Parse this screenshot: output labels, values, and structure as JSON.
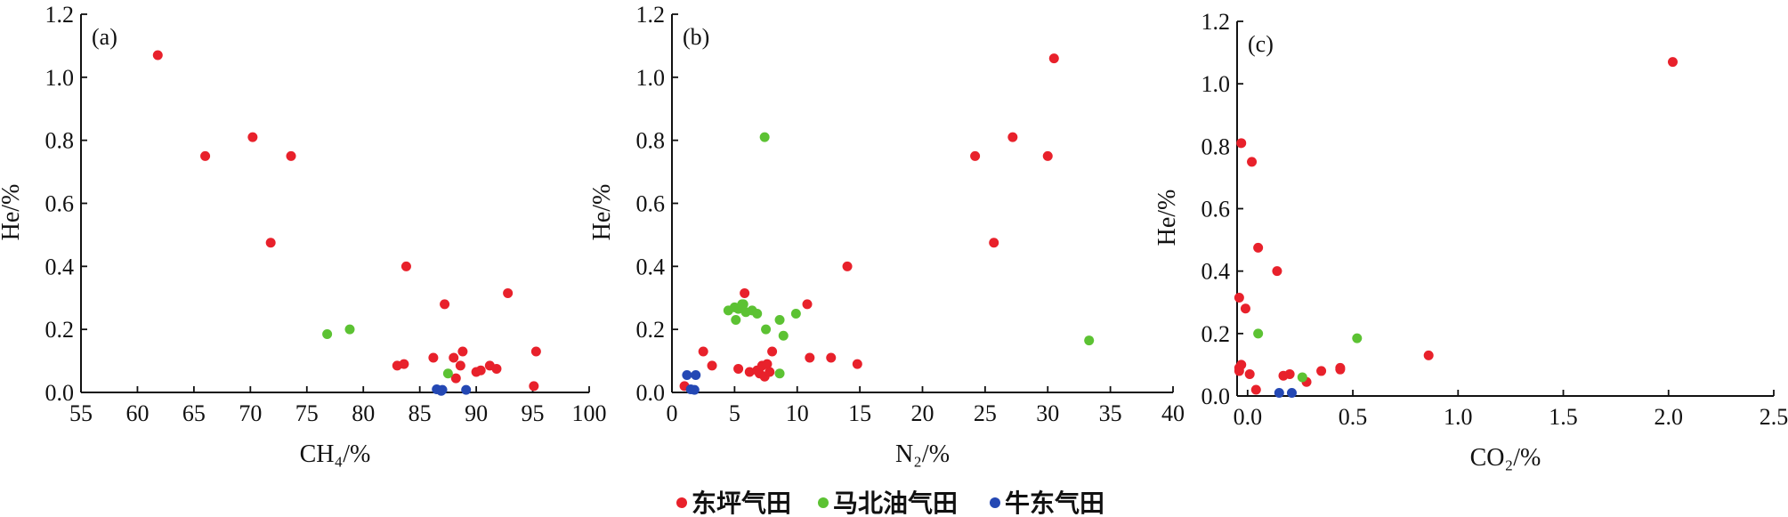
{
  "colors": {
    "dongping": "#e8212b",
    "mabei": "#5cc233",
    "niudong": "#2448b4"
  },
  "legend": [
    {
      "key": "dongping",
      "label": "东坪气田"
    },
    {
      "key": "mabei",
      "label": "马北油气田"
    },
    {
      "key": "niudong",
      "label": "牛东气田"
    }
  ],
  "chart_data": [
    {
      "type": "scatter",
      "panel_label": "(a)",
      "xlabel": "CH₄/%",
      "ylabel": "He/%",
      "xlim": [
        55,
        100
      ],
      "ylim": [
        0,
        1.2
      ],
      "xticks": [
        "55",
        "60",
        "65",
        "70",
        "75",
        "80",
        "85",
        "90",
        "95",
        "100"
      ],
      "yticks": [
        "0.0",
        "0.2",
        "0.4",
        "0.6",
        "0.8",
        "1.0",
        "1.2"
      ],
      "series": [
        {
          "key": "dongping",
          "name": "东坪气田",
          "x": [
            61.8,
            66.0,
            70.2,
            71.8,
            73.6,
            83.8,
            87.2,
            92.8,
            83.0,
            83.6,
            86.2,
            88.0,
            88.8,
            90.0,
            90.4,
            91.2,
            91.8,
            95.3,
            95.1,
            88.2,
            88.6
          ],
          "y": [
            1.07,
            0.75,
            0.81,
            0.475,
            0.75,
            0.4,
            0.28,
            0.315,
            0.085,
            0.09,
            0.11,
            0.11,
            0.13,
            0.065,
            0.07,
            0.085,
            0.075,
            0.13,
            0.02,
            0.045,
            0.085
          ]
        },
        {
          "key": "mabei",
          "name": "马北油气田",
          "x": [
            76.8,
            78.8,
            87.5
          ],
          "y": [
            0.185,
            0.2,
            0.06
          ]
        },
        {
          "key": "niudong",
          "name": "牛东气田",
          "x": [
            86.5,
            86.9,
            87.0,
            89.1
          ],
          "y": [
            0.01,
            0.005,
            0.008,
            0.008
          ]
        }
      ]
    },
    {
      "type": "scatter",
      "panel_label": "(b)",
      "xlabel": "N₂/%",
      "ylabel": "He/%",
      "xlim": [
        0,
        40
      ],
      "ylim": [
        0,
        1.2
      ],
      "xticks": [
        "0",
        "5",
        "10",
        "15",
        "20",
        "25",
        "30",
        "35",
        "40"
      ],
      "yticks": [
        "0.0",
        "0.2",
        "0.4",
        "0.6",
        "0.8",
        "1.0",
        "1.2"
      ],
      "series": [
        {
          "key": "dongping",
          "name": "东坪气田",
          "x": [
            30.5,
            24.2,
            27.2,
            30.0,
            25.7,
            14.0,
            10.8,
            5.8,
            2.5,
            1.0,
            3.2,
            5.3,
            6.2,
            7.0,
            7.4,
            7.8,
            6.8,
            7.2,
            11.0,
            12.7,
            14.8,
            7.6,
            8.0
          ],
          "y": [
            1.06,
            0.75,
            0.81,
            0.75,
            0.475,
            0.4,
            0.28,
            0.315,
            0.13,
            0.02,
            0.085,
            0.075,
            0.065,
            0.06,
            0.05,
            0.065,
            0.07,
            0.085,
            0.11,
            0.11,
            0.09,
            0.09,
            0.13
          ]
        },
        {
          "key": "mabei",
          "name": "马北油气田",
          "x": [
            7.4,
            4.5,
            5.0,
            5.3,
            5.6,
            5.9,
            6.4,
            6.8,
            5.1,
            7.5,
            8.6,
            8.9,
            9.9,
            33.3,
            8.6,
            5.7
          ],
          "y": [
            0.81,
            0.26,
            0.27,
            0.265,
            0.28,
            0.255,
            0.26,
            0.25,
            0.23,
            0.2,
            0.23,
            0.18,
            0.25,
            0.165,
            0.06,
            0.28
          ]
        },
        {
          "key": "niudong",
          "name": "牛东气田",
          "x": [
            1.2,
            1.9,
            1.5,
            1.8
          ],
          "y": [
            0.055,
            0.055,
            0.01,
            0.008
          ]
        }
      ]
    },
    {
      "type": "scatter",
      "panel_label": "(c)",
      "xlabel": "CO₂/%",
      "ylabel": "He/%",
      "xlim": [
        -0.05,
        2.5
      ],
      "ylim": [
        0,
        1.2
      ],
      "xticks": [
        "0.0",
        "0.5",
        "1.0",
        "1.5",
        "2.0",
        "2.5"
      ],
      "yticks": [
        "0.0",
        "0.2",
        "0.4",
        "0.6",
        "0.8",
        "1.0",
        "1.2"
      ],
      "series": [
        {
          "key": "dongping",
          "name": "东坪气田",
          "x": [
            2.02,
            -0.03,
            0.02,
            0.05,
            0.14,
            -0.04,
            -0.01,
            0.86,
            0.35,
            0.44,
            0.44,
            0.17,
            0.2,
            0.28,
            -0.04,
            -0.04,
            -0.03,
            0.01,
            0.04
          ],
          "y": [
            1.07,
            0.81,
            0.75,
            0.475,
            0.4,
            0.315,
            0.28,
            0.13,
            0.08,
            0.085,
            0.09,
            0.065,
            0.07,
            0.045,
            0.08,
            0.09,
            0.1,
            0.07,
            0.02
          ]
        },
        {
          "key": "mabei",
          "name": "马北油气田",
          "x": [
            0.05,
            0.52,
            0.26
          ],
          "y": [
            0.2,
            0.185,
            0.06
          ]
        },
        {
          "key": "niudong",
          "name": "牛东气田",
          "x": [
            0.15,
            0.21
          ],
          "y": [
            0.01,
            0.01
          ]
        }
      ]
    }
  ]
}
